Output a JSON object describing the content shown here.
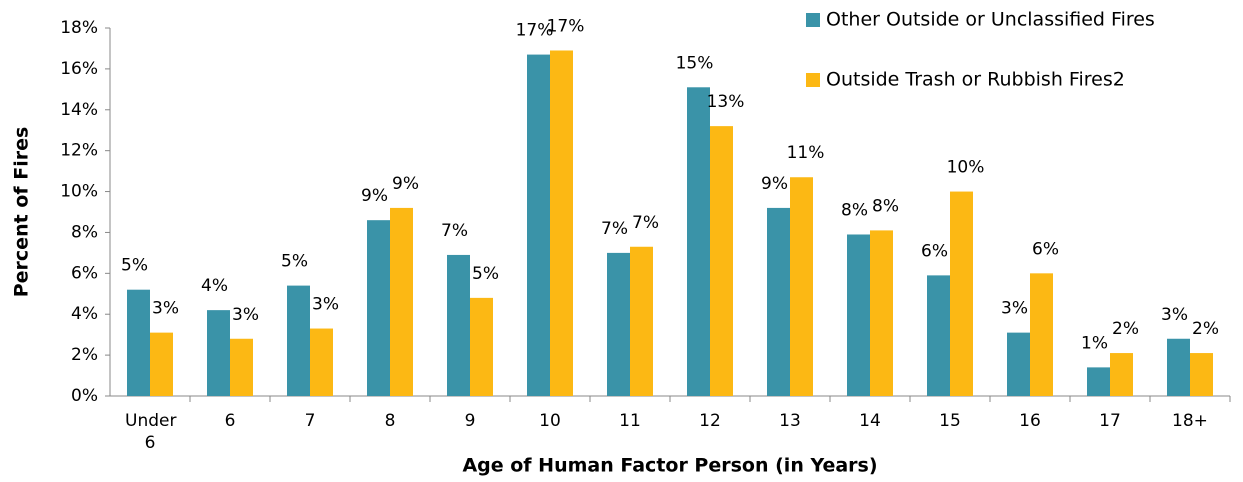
{
  "chart_data": {
    "type": "bar",
    "x_label": "Age of Human Factor Person (in Years)",
    "y_label": "Percent of Fires",
    "categories": [
      "Under 6",
      "6",
      "7",
      "8",
      "9",
      "10",
      "11",
      "12",
      "13",
      "14",
      "15",
      "16",
      "17",
      "18+"
    ],
    "series": [
      {
        "name": "Other Outside or Unclassified Fires",
        "color": "#3a93a8",
        "values": [
          5.2,
          4.2,
          5.4,
          8.6,
          6.9,
          16.7,
          7.0,
          15.1,
          9.2,
          7.9,
          5.9,
          3.1,
          1.4,
          2.8
        ],
        "value_labels": [
          "5%",
          "4%",
          "5%",
          "9%",
          "7%",
          "17%",
          "7%",
          "15%",
          "9%",
          "8%",
          "6%",
          "3%",
          "1%",
          "3%"
        ]
      },
      {
        "name": "Outside Trash or Rubbish Fires2",
        "color": "#fcb814",
        "values": [
          3.1,
          2.8,
          3.3,
          9.2,
          4.8,
          16.9,
          7.3,
          13.2,
          10.7,
          8.1,
          10.0,
          6.0,
          2.1,
          2.1
        ],
        "value_labels": [
          "3%",
          "3%",
          "3%",
          "9%",
          "5%",
          "17%",
          "7%",
          "13%",
          "11%",
          "8%",
          "10%",
          "6%",
          "2%",
          "2%"
        ]
      }
    ],
    "ylim": [
      0,
      18
    ],
    "yticks": [
      {
        "value": 0,
        "label": "0%"
      },
      {
        "value": 2,
        "label": "2%"
      },
      {
        "value": 4,
        "label": "4%"
      },
      {
        "value": 6,
        "label": "6%"
      },
      {
        "value": 8,
        "label": "8%"
      },
      {
        "value": 10,
        "label": "10%"
      },
      {
        "value": 12,
        "label": "12%"
      },
      {
        "value": 14,
        "label": "14%"
      },
      {
        "value": 16,
        "label": "16%"
      },
      {
        "value": 18,
        "label": "18%"
      }
    ],
    "legend": "top-right"
  }
}
